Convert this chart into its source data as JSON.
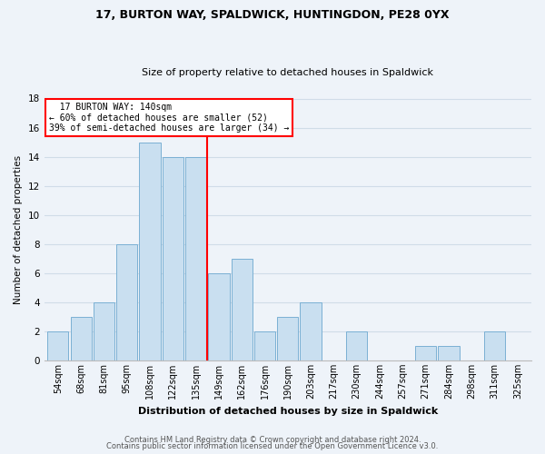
{
  "title_line1": "17, BURTON WAY, SPALDWICK, HUNTINGDON, PE28 0YX",
  "title_line2": "Size of property relative to detached houses in Spaldwick",
  "xlabel": "Distribution of detached houses by size in Spaldwick",
  "ylabel": "Number of detached properties",
  "bar_labels": [
    "54sqm",
    "68sqm",
    "81sqm",
    "95sqm",
    "108sqm",
    "122sqm",
    "135sqm",
    "149sqm",
    "162sqm",
    "176sqm",
    "190sqm",
    "203sqm",
    "217sqm",
    "230sqm",
    "244sqm",
    "257sqm",
    "271sqm",
    "284sqm",
    "298sqm",
    "311sqm",
    "325sqm"
  ],
  "bar_heights": [
    2,
    3,
    4,
    8,
    15,
    14,
    14,
    6,
    7,
    2,
    3,
    4,
    0,
    2,
    0,
    0,
    1,
    1,
    0,
    2,
    0
  ],
  "bar_color": "#c9dff0",
  "bar_edge_color": "#7ab0d4",
  "vline_color": "red",
  "annotation_title": "17 BURTON WAY: 140sqm",
  "annotation_line1": "← 60% of detached houses are smaller (52)",
  "annotation_line2": "39% of semi-detached houses are larger (34) →",
  "annotation_box_color": "white",
  "annotation_box_edge": "red",
  "ylim": [
    0,
    18
  ],
  "yticks": [
    0,
    2,
    4,
    6,
    8,
    10,
    12,
    14,
    16,
    18
  ],
  "footnote1": "Contains HM Land Registry data © Crown copyright and database right 2024.",
  "footnote2": "Contains public sector information licensed under the Open Government Licence v3.0.",
  "grid_color": "#d0dce8",
  "background_color": "#eef3f9",
  "title_fontsize": 9,
  "subtitle_fontsize": 8,
  "xlabel_fontsize": 8,
  "ylabel_fontsize": 7.5,
  "tick_fontsize": 7,
  "footnote_fontsize": 6
}
